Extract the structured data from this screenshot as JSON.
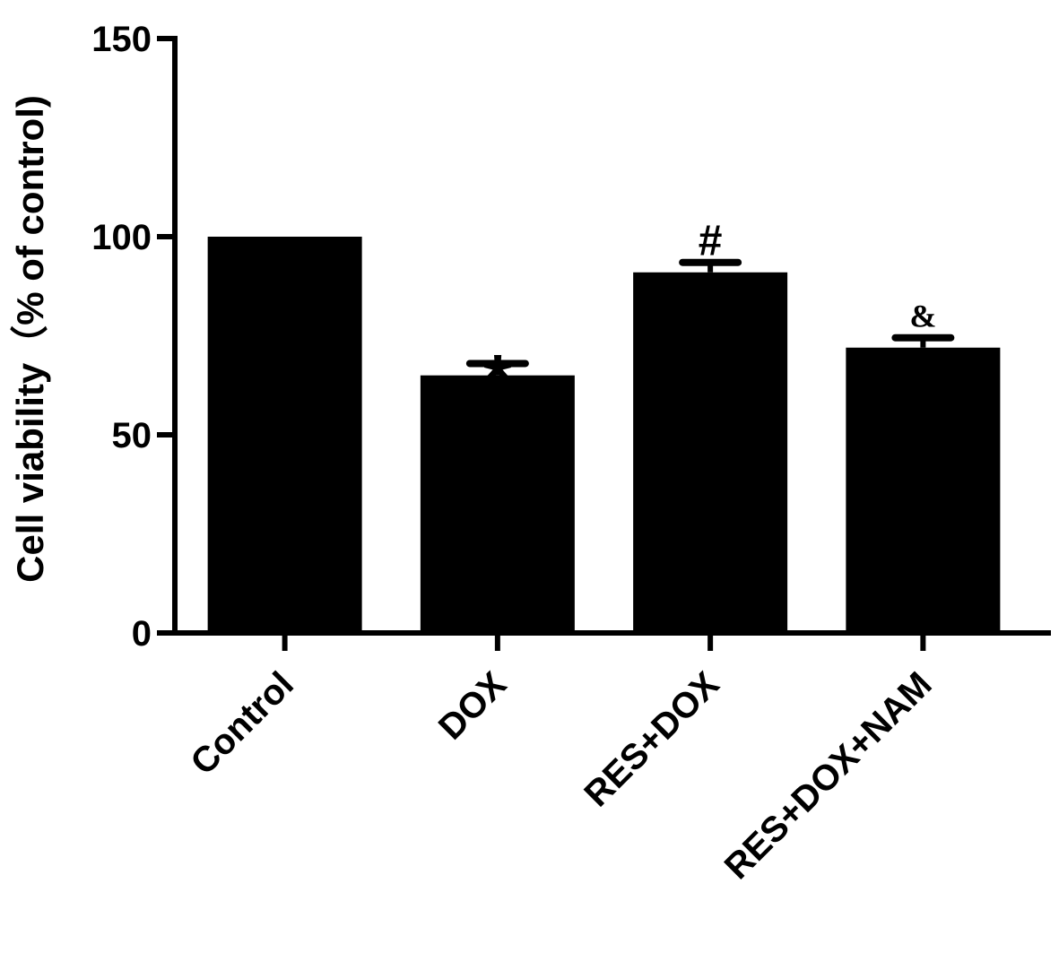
{
  "chart_data": {
    "type": "bar",
    "title": "",
    "xlabel": "",
    "ylabel": "Cell viability（% of control)",
    "ylim": [
      0,
      150
    ],
    "yticks": [
      0,
      50,
      100,
      150
    ],
    "ytick_labels": [
      "0",
      "50",
      "100",
      "150"
    ],
    "categories": [
      "Control",
      "DOX",
      "RES+DOX",
      "RES+DOX+NAM"
    ],
    "values": [
      100,
      65,
      91,
      72
    ],
    "errors": [
      0,
      3,
      2.5,
      2.5
    ],
    "annotations": [
      "",
      "*",
      "#",
      "&"
    ],
    "bar_color": "#000000",
    "grid": false
  }
}
